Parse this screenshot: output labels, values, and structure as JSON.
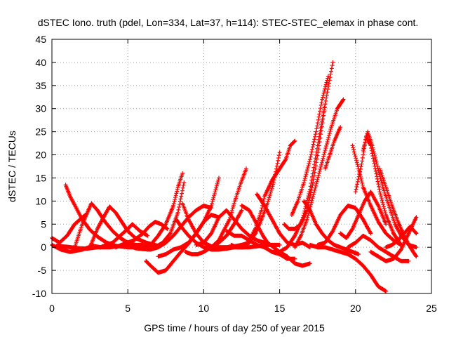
{
  "chart_data": {
    "type": "scatter",
    "title": "dSTEC Iono. truth (pdel, Lon=334, Lat=37, h=114): STEC-STEC_elemax in phase cont.",
    "xlabel": "GPS time / hours of day 250 of year 2015",
    "ylabel": "dSTEC  / TECUs",
    "xlim": [
      0,
      25
    ],
    "ylim": [
      -10,
      45
    ],
    "xticks": [
      0,
      5,
      10,
      15,
      20,
      25
    ],
    "yticks": [
      -10,
      -5,
      0,
      5,
      10,
      15,
      20,
      25,
      30,
      35,
      40,
      45
    ],
    "grid": true,
    "marker": "+",
    "color": "#ff0000",
    "series": [
      {
        "x": [
          0,
          0.5,
          1.0,
          1.5,
          2.2
        ],
        "y": [
          2.0,
          1.0,
          2.5,
          5.0,
          7.0
        ]
      },
      {
        "x": [
          0,
          0.6,
          1.2,
          2.0,
          2.7,
          3.2
        ],
        "y": [
          0.5,
          -0.5,
          -1.0,
          -0.5,
          0.3,
          0.0
        ]
      },
      {
        "x": [
          0.9,
          1.2,
          1.6,
          2.0,
          2.5,
          3.0,
          3.6,
          4.2,
          5.0,
          5.6
        ],
        "y": [
          13.5,
          11.0,
          8.5,
          6.0,
          3.8,
          2.3,
          1.0,
          0.3,
          0.0,
          0.0
        ]
      },
      {
        "x": [
          0.3,
          1.0,
          1.7,
          2.3,
          3.0,
          3.8,
          4.6,
          5.4,
          6.2
        ],
        "y": [
          0.3,
          0.1,
          -0.2,
          -0.3,
          0.0,
          0.0,
          0.3,
          0.5,
          0.2
        ]
      },
      {
        "x": [
          1.5,
          2.0,
          2.6,
          3.0,
          3.5,
          4.0,
          4.5,
          5.0,
          5.5,
          6.0
        ],
        "y": [
          0.0,
          5.0,
          9.5,
          8.0,
          5.5,
          3.5,
          2.0,
          1.0,
          0.5,
          0.5
        ]
      },
      {
        "x": [
          2.5,
          3.0,
          3.4,
          3.8,
          4.2,
          4.6,
          5.0,
          5.5,
          6.2,
          7.0
        ],
        "y": [
          0.0,
          4.0,
          6.5,
          8.8,
          7.5,
          5.5,
          3.5,
          2.0,
          1.0,
          0.3
        ]
      },
      {
        "x": [
          3.2,
          4.0,
          4.5,
          5.0,
          5.3,
          5.8,
          6.3
        ],
        "y": [
          0.0,
          1.0,
          2.5,
          4.0,
          5.0,
          3.5,
          2.5
        ]
      },
      {
        "x": [
          4.2,
          4.8,
          5.4,
          6.0,
          6.4,
          6.8,
          7.2,
          7.6
        ],
        "y": [
          0.0,
          0.8,
          1.5,
          3.0,
          4.5,
          5.5,
          5.0,
          4.0
        ]
      },
      {
        "x": [
          5.0,
          5.5,
          6.0,
          6.5,
          7.0,
          7.5,
          8.0,
          8.5,
          9.0,
          9.5,
          10.0,
          10.5
        ],
        "y": [
          0.5,
          -0.2,
          -0.4,
          -0.5,
          0.0,
          1.0,
          2.5,
          4.5,
          6.5,
          8.0,
          9.0,
          8.5
        ]
      },
      {
        "x": [
          6.2,
          6.5,
          7.0,
          7.5,
          8.0,
          8.5,
          9.0,
          9.5,
          10.0,
          10.5,
          11.0
        ],
        "y": [
          -3.0,
          -4.0,
          -5.5,
          -5.0,
          -3.0,
          -1.0,
          0.8,
          3.0,
          5.5,
          7.0,
          6.5
        ]
      },
      {
        "x": [
          6.0,
          6.5,
          7.0,
          7.5,
          8.0,
          8.3,
          8.6
        ],
        "y": [
          0.0,
          0.5,
          2.5,
          5.0,
          9.0,
          13.0,
          16.0
        ]
      },
      {
        "x": [
          6.3,
          6.8,
          7.3,
          7.8,
          8.3,
          8.7
        ],
        "y": [
          -0.5,
          0.0,
          1.0,
          3.0,
          7.5,
          14.0
        ]
      },
      {
        "x": [
          7.0,
          7.5,
          8.0,
          8.5,
          9.0,
          9.5,
          10.0,
          10.5,
          11.0
        ],
        "y": [
          -2.0,
          -1.5,
          -0.5,
          0.0,
          1.0,
          3.0,
          5.5,
          9.0,
          15.0
        ]
      },
      {
        "x": [
          8.6,
          9.0,
          9.5,
          10.0,
          10.5,
          11.0,
          11.5,
          12.0,
          12.5
        ],
        "y": [
          9.5,
          6.0,
          3.0,
          1.0,
          0.2,
          0.0,
          0.0,
          0.2,
          0.5
        ]
      },
      {
        "x": [
          8.2,
          8.5,
          9.0,
          9.5,
          10.0,
          10.5,
          11.0,
          11.5,
          12.0,
          12.5,
          13.0
        ],
        "y": [
          6.0,
          4.5,
          2.5,
          1.0,
          0.0,
          -0.5,
          -0.5,
          -0.3,
          0.0,
          0.5,
          1.0
        ]
      },
      {
        "x": [
          8.8,
          9.2,
          9.6,
          10.0,
          10.5,
          11.0,
          11.5,
          12.0,
          12.5
        ],
        "y": [
          -1.0,
          -1.5,
          -1.5,
          -1.0,
          0.0,
          1.0,
          2.5,
          5.0,
          8.0
        ]
      },
      {
        "x": [
          9.5,
          10.0,
          10.5,
          11.0,
          11.5,
          12.0,
          12.5,
          13.0,
          13.5,
          14.0
        ],
        "y": [
          0.5,
          1.0,
          3.0,
          6.5,
          8.0,
          6.0,
          4.0,
          2.5,
          1.5,
          1.0
        ]
      },
      {
        "x": [
          10.5,
          11.0,
          11.3,
          11.7,
          12.0,
          12.4,
          12.8
        ],
        "y": [
          0.0,
          1.5,
          3.5,
          6.0,
          9.5,
          13.5,
          17.0
        ]
      },
      {
        "x": [
          11.0,
          11.5,
          12.0,
          12.5,
          13.0,
          13.5,
          14.0,
          14.5,
          15.0
        ],
        "y": [
          0.0,
          0.0,
          0.0,
          0.0,
          0.0,
          0.2,
          0.5,
          0.5,
          0.5
        ]
      },
      {
        "x": [
          11.5,
          12.0,
          12.5,
          13.0,
          13.5,
          14.0,
          14.5,
          15.0,
          15.5,
          16.0
        ],
        "y": [
          3.5,
          2.5,
          2.5,
          1.5,
          0.5,
          0.0,
          -1.0,
          -1.5,
          -2.5,
          -2.5
        ]
      },
      {
        "x": [
          11.8,
          12.2,
          12.6,
          13.0,
          13.4,
          13.8,
          14.2,
          14.6,
          15.0
        ],
        "y": [
          0.5,
          0.0,
          0.0,
          1.0,
          3.0,
          6.0,
          9.5,
          14.0,
          20.5
        ]
      },
      {
        "x": [
          12.5,
          13.0,
          13.5,
          13.9,
          14.2,
          14.6,
          15.0,
          15.5,
          16.0,
          16.5,
          17.0
        ],
        "y": [
          9.0,
          8.0,
          5.0,
          2.5,
          1.0,
          0.0,
          -1.0,
          -2.0,
          -3.5,
          -4.0,
          -3.5
        ]
      },
      {
        "x": [
          12.6,
          13.0,
          13.4,
          13.8,
          14.0,
          14.5,
          15.0,
          15.4,
          15.7,
          16.0
        ],
        "y": [
          0.0,
          1.5,
          4.0,
          8.0,
          11.0,
          14.5,
          17.0,
          19.0,
          22.0,
          23.0
        ]
      },
      {
        "x": [
          13.5,
          14.0,
          14.5,
          15.0,
          15.5,
          16.0,
          16.5,
          17.0
        ],
        "y": [
          11.5,
          9.0,
          6.0,
          3.0,
          1.0,
          0.5,
          1.0,
          0.0
        ]
      },
      {
        "x": [
          14.5,
          15.0,
          15.5,
          16.0,
          16.5,
          17.0,
          17.5,
          18.0,
          18.5
        ],
        "y": [
          -1.0,
          -1.0,
          0.0,
          2.5,
          6.0,
          12.5,
          22.0,
          31.0,
          40.0
        ]
      },
      {
        "x": [
          15.3,
          15.6,
          16.0,
          16.4,
          16.8,
          17.2,
          17.6,
          18.0
        ],
        "y": [
          5.0,
          4.0,
          4.0,
          5.0,
          8.0,
          14.0,
          22.0,
          31.0
        ]
      },
      {
        "x": [
          15.8,
          16.2,
          16.6,
          17.0,
          17.4,
          17.8,
          18.2
        ],
        "y": [
          7.0,
          10.0,
          14.0,
          19.0,
          25.0,
          32.0,
          37.0
        ]
      },
      {
        "x": [
          16.0,
          16.4,
          16.8,
          17.2,
          17.6,
          18.0,
          18.4,
          18.8,
          19.2
        ],
        "y": [
          0.0,
          2.5,
          6.0,
          11.0,
          16.0,
          21.0,
          26.0,
          30.0,
          32.0
        ]
      },
      {
        "x": [
          16.6,
          17.0,
          17.4,
          17.8,
          18.2,
          18.6,
          19.0,
          19.4,
          19.8,
          20.2
        ],
        "y": [
          10.0,
          8.0,
          5.0,
          3.0,
          1.5,
          0.5,
          0.0,
          -0.5,
          -1.0,
          -1.5
        ]
      },
      {
        "x": [
          17.0,
          17.5,
          18.0,
          18.5,
          19.0,
          19.5,
          20.0,
          20.5,
          21.0,
          21.5,
          22.0
        ],
        "y": [
          0.5,
          0.0,
          0.0,
          -0.5,
          -1.0,
          -1.5,
          -2.5,
          -4.0,
          -6.0,
          -8.5,
          -9.5
        ]
      },
      {
        "x": [
          17.5,
          18.0,
          18.5,
          19.0,
          19.5,
          20.0,
          20.5,
          21.0
        ],
        "y": [
          0.5,
          1.0,
          3.5,
          7.0,
          9.0,
          8.5,
          6.0,
          3.0
        ]
      },
      {
        "x": [
          18.0,
          18.3,
          18.6,
          19.0
        ],
        "y": [
          17.0,
          20.0,
          23.0,
          26.0
        ]
      },
      {
        "x": [
          19.0,
          19.4,
          19.8,
          20.2,
          20.6,
          21.0,
          21.5,
          22.0
        ],
        "y": [
          3.0,
          2.0,
          4.0,
          7.0,
          10.0,
          12.0,
          9.0,
          5.0
        ]
      },
      {
        "x": [
          19.8,
          20.2,
          20.5,
          21.0,
          21.5,
          22.0,
          22.5,
          23.0
        ],
        "y": [
          22.0,
          17.0,
          13.0,
          9.0,
          5.5,
          3.0,
          1.5,
          0.5
        ]
      },
      {
        "x": [
          19.5,
          20.0,
          20.5,
          21.0,
          21.5,
          22.0,
          22.5,
          23.0,
          23.5
        ],
        "y": [
          0.0,
          1.0,
          2.5,
          1.5,
          0.0,
          -1.0,
          -2.0,
          -3.0,
          -3.0
        ]
      },
      {
        "x": [
          20.0,
          20.4,
          20.7,
          21.0,
          21.3,
          21.6,
          22.0,
          22.5,
          23.0
        ],
        "y": [
          12.0,
          18.0,
          24.0,
          22.0,
          17.0,
          12.0,
          7.0,
          3.0,
          0.5
        ]
      },
      {
        "x": [
          20.5,
          20.8,
          21.1,
          21.4,
          21.8,
          22.2,
          22.6,
          23.0,
          23.5,
          24.0
        ],
        "y": [
          21.0,
          25.0,
          22.0,
          18.0,
          13.0,
          9.0,
          5.0,
          2.5,
          0.5,
          0.0
        ]
      },
      {
        "x": [
          21.6,
          22.0,
          22.4,
          22.8,
          23.2,
          23.6,
          24.0
        ],
        "y": [
          17.0,
          13.0,
          9.0,
          5.5,
          2.5,
          0.0,
          -2.0
        ]
      },
      {
        "x": [
          21.0,
          21.5,
          22.0,
          22.5,
          23.0,
          23.5,
          24.0
        ],
        "y": [
          -1.0,
          -2.0,
          -3.0,
          -2.5,
          -0.5,
          3.0,
          6.5
        ]
      },
      {
        "x": [
          22.0,
          22.4,
          22.8,
          23.2,
          23.6,
          24.0
        ],
        "y": [
          0.0,
          0.5,
          1.5,
          3.0,
          4.5,
          3.0
        ]
      }
    ]
  }
}
